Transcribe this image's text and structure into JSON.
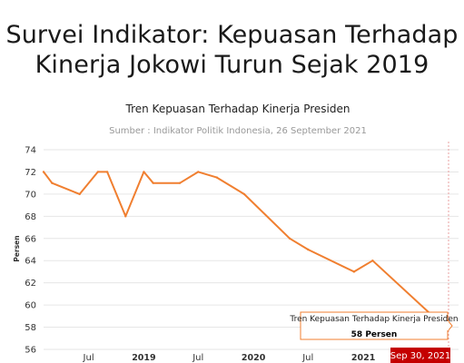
{
  "headline": {
    "line1": "Survei Indikator: Kepuasan Terhadap",
    "line2": "Kinerja Jokowi Turun Sejak 2019"
  },
  "colors": {
    "line": "#f07f30",
    "grid": "#e6e6e6",
    "crosshair": "#e8a0a0",
    "badge": "#c40000"
  },
  "chart_data": {
    "type": "line",
    "title": "Tren Kepuasan Terhadap Kinerja Presiden",
    "subtitle": "Sumber : Indikator Politik Indonesia, 26 September 2021",
    "ylabel": "Persen",
    "xlabel": "",
    "ylim": [
      56,
      74
    ],
    "xlim": [
      "2018-02-01",
      "2021-10-15"
    ],
    "yticks": [
      56,
      58,
      60,
      62,
      64,
      66,
      68,
      70,
      72,
      74
    ],
    "xticks": [
      {
        "date": "2018-07-01",
        "label": "Jul",
        "bold": false
      },
      {
        "date": "2019-01-01",
        "label": "2019",
        "bold": true
      },
      {
        "date": "2019-07-01",
        "label": "Jul",
        "bold": false
      },
      {
        "date": "2020-01-01",
        "label": "2020",
        "bold": true
      },
      {
        "date": "2020-07-01",
        "label": "Jul",
        "bold": false
      },
      {
        "date": "2021-01-01",
        "label": "2021",
        "bold": true
      }
    ],
    "grid": true,
    "series": [
      {
        "name": "Tren Kepuasan Terhadap Kinerja Presiden",
        "x": [
          "2018-02-01",
          "2018-03-01",
          "2018-06-01",
          "2018-08-01",
          "2018-09-01",
          "2018-11-01",
          "2019-01-01",
          "2019-02-01",
          "2019-05-01",
          "2019-07-01",
          "2019-09-01",
          "2019-12-01",
          "2020-05-01",
          "2020-07-01",
          "2020-12-01",
          "2021-02-01",
          "2021-09-30"
        ],
        "values": [
          72,
          71,
          70,
          72,
          72,
          68,
          72,
          71,
          71,
          72,
          71.5,
          70,
          66,
          65,
          63,
          64,
          58
        ]
      }
    ],
    "tooltip": {
      "series_label": "Tren Kepuasan Terhadap Kinerja Presiden",
      "value_text": "58 Persen",
      "date_text": "Sep 30, 2021"
    }
  }
}
